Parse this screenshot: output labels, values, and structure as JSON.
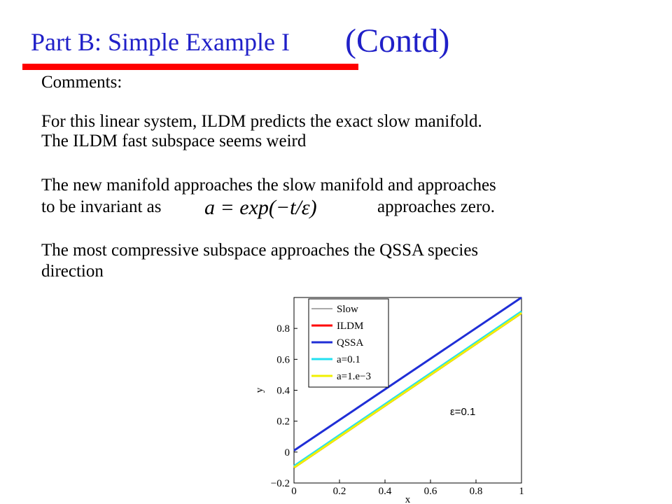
{
  "slide": {
    "title": "Part B: Simple Example I",
    "title_suffix": "(Contd)",
    "lines": [
      "Comments:",
      "For this linear system,  ILDM predicts the exact slow manifold.",
      "The ILDM fast subspace seems weird",
      "The new manifold approaches the slow manifold and  approaches",
      "to be invariant as",
      "approaches zero.",
      "The most compressive subspace approaches the QSSA species",
      "direction"
    ],
    "formula": "a = exp(−t/ε)"
  },
  "chart_data": {
    "type": "line",
    "xlabel": "x",
    "ylabel": "y",
    "annotation": "ε=0.1",
    "x": [
      0,
      1
    ],
    "series": [
      {
        "name": "Slow",
        "color": "#555555",
        "values": [
          -0.1,
          0.9
        ]
      },
      {
        "name": "ILDM",
        "color": "#ff0000",
        "values": [
          -0.1,
          0.9
        ]
      },
      {
        "name": "QSSA",
        "color": "#1f2ed6",
        "values": [
          0.01,
          1.0
        ]
      },
      {
        "name": "a=0.1",
        "color": "#22e0f0",
        "values": [
          -0.09,
          0.91
        ]
      },
      {
        "name": "a=1.e−3",
        "color": "#f0f000",
        "values": [
          -0.1,
          0.9
        ]
      }
    ],
    "xlim": [
      0,
      1
    ],
    "xticks": [
      0,
      0.2,
      0.4,
      0.6,
      0.8,
      1
    ],
    "ylim": [
      -0.2,
      1
    ],
    "yticks": [
      {
        "value": -0.2,
        "label": "−0.2"
      },
      0,
      0.2,
      0.4,
      0.6,
      0.8
    ],
    "legend": "upper left"
  }
}
